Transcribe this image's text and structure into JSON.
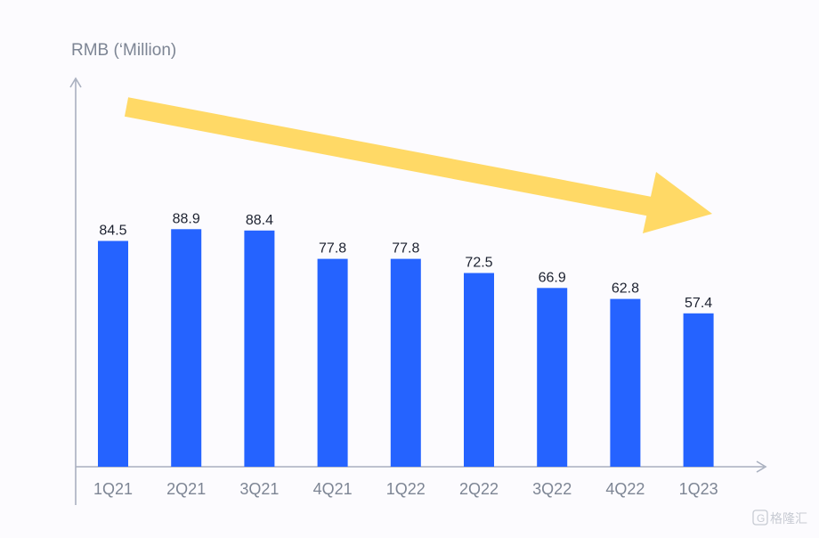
{
  "chart_data": {
    "type": "bar",
    "title": "",
    "xlabel": "",
    "ylabel": "RMB (‘Million)",
    "categories": [
      "1Q21",
      "2Q21",
      "3Q21",
      "4Q21",
      "1Q22",
      "2Q22",
      "3Q22",
      "4Q22",
      "1Q23"
    ],
    "values": [
      84.5,
      88.9,
      88.4,
      77.8,
      77.8,
      72.5,
      66.9,
      62.8,
      57.4
    ],
    "ylim": [
      0,
      112
    ],
    "grid": false,
    "legend": "none",
    "data_labels": true,
    "annotation": "downward trend arrow",
    "colors": {
      "bar": "#2563ff",
      "axis": "#a9b0bf",
      "tick_text": "#7d8594",
      "value_text": "#1d2230",
      "arrow": "#ffd966",
      "background": "#fcfbfe"
    }
  },
  "watermark": {
    "icon": "g-logo-icon",
    "text": "格隆汇"
  }
}
